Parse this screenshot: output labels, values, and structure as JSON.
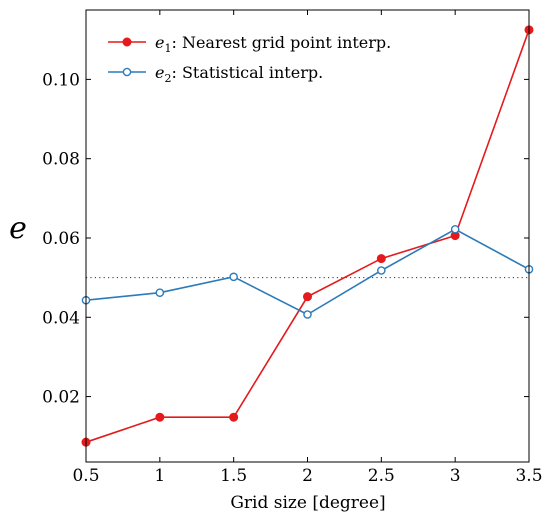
{
  "chart_data": {
    "type": "line",
    "xlabel": "Grid size [degree]",
    "ylabel": "e",
    "xlim": [
      0.5,
      3.5
    ],
    "ylim": [
      0.0035,
      0.1175
    ],
    "xticks": [
      0.5,
      1,
      1.5,
      2,
      2.5,
      3,
      3.5
    ],
    "xtick_labels": [
      "0.5",
      "1",
      "1.5",
      "2",
      "2.5",
      "3",
      "3.5"
    ],
    "yticks": [
      0.02,
      0.04,
      0.06,
      0.08,
      0.1
    ],
    "ytick_labels": [
      "0.02",
      "0.04",
      "0.06",
      "0.08",
      "0.10"
    ],
    "grid": false,
    "legend_position": "top-left",
    "reference_line": {
      "y": 0.05,
      "style": "dotted"
    },
    "x": [
      0.5,
      1,
      1.5,
      2,
      2.5,
      3,
      3.5
    ],
    "series": [
      {
        "symbol": "e",
        "subscript": "1",
        "label": ": Nearest grid point interp.",
        "color": "#e41a1c",
        "marker": "filled-circle",
        "values": [
          0.0085,
          0.0148,
          0.0148,
          0.0452,
          0.0548,
          0.0606,
          0.1125
        ]
      },
      {
        "symbol": "e",
        "subscript": "2",
        "label": ": Statistical interp.",
        "color": "#2b7bba",
        "marker": "open-circle",
        "values": [
          0.0443,
          0.0462,
          0.0502,
          0.0407,
          0.0518,
          0.0622,
          0.0521
        ]
      }
    ]
  }
}
